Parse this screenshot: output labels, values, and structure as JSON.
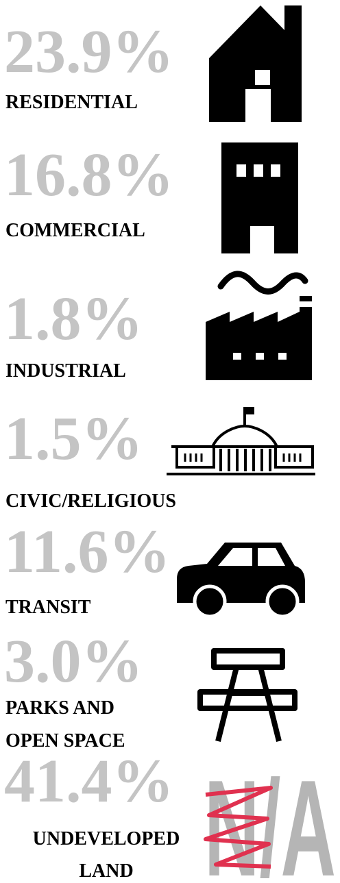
{
  "items": [
    {
      "percent": "23.9%",
      "label": [
        "RESIDENTIAL"
      ]
    },
    {
      "percent": "16.8%",
      "label": [
        "COMMERCIAL"
      ]
    },
    {
      "percent": "1.8%",
      "label": [
        "INDUSTRIAL"
      ]
    },
    {
      "percent": "1.5%",
      "label": [
        "CIVIC/RELIGIOUS"
      ]
    },
    {
      "percent": "11.6%",
      "label": [
        "TRANSIT"
      ]
    },
    {
      "percent": "3.0%",
      "label": [
        "PARKS AND",
        "OPEN SPACE"
      ]
    },
    {
      "percent": "41.4%",
      "label": [
        "UNDEVELOPED",
        "LAND"
      ],
      "icon_text": "N/A"
    }
  ]
}
